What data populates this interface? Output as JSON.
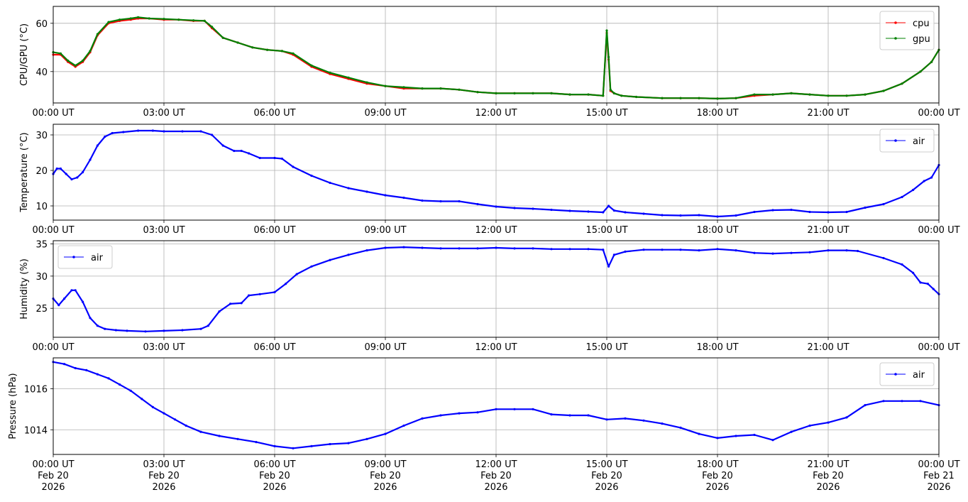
{
  "chart_data": [
    {
      "type": "line",
      "xlabel": "",
      "ylabel": "CPU/GPU (°C)",
      "xlim": [
        0,
        24
      ],
      "ylim": [
        27,
        67
      ],
      "yticks": [
        40,
        60
      ],
      "xtick_labels": [
        "00:00 UT",
        "03:00 UT",
        "06:00 UT",
        "09:00 UT",
        "12:00 UT",
        "15:00 UT",
        "18:00 UT",
        "21:00 UT",
        "00:00 UT"
      ],
      "grid": true,
      "legend": "top-right",
      "series": [
        {
          "name": "cpu",
          "color": "#ff0000",
          "x": [
            0,
            0.2,
            0.4,
            0.6,
            0.8,
            1,
            1.2,
            1.5,
            1.8,
            2.1,
            2.3,
            2.6,
            3,
            3.4,
            3.8,
            4.1,
            4.3,
            4.6,
            5,
            5.4,
            5.8,
            6.2,
            6.5,
            7,
            7.5,
            8,
            8.5,
            9,
            9.5,
            10,
            10.5,
            11,
            11.5,
            12,
            12.5,
            13,
            13.5,
            14,
            14.5,
            14.9,
            15,
            15.05,
            15.1,
            15.2,
            15.4,
            15.8,
            16.5,
            17,
            17.5,
            18,
            18.5,
            19,
            19.5,
            20,
            20.5,
            21,
            21.5,
            22,
            22.5,
            23,
            23.5,
            23.8,
            24
          ],
          "y": [
            47,
            47,
            44,
            42,
            44,
            48,
            55,
            60,
            61,
            61.5,
            62,
            62,
            61.5,
            61.5,
            61,
            61,
            58,
            54,
            52,
            50,
            49,
            48.5,
            47,
            42,
            39,
            37,
            35,
            34,
            33,
            33,
            33,
            32.5,
            31.5,
            31,
            31,
            31,
            31,
            30.5,
            30.5,
            30,
            56,
            45,
            32,
            31,
            30,
            29.5,
            29,
            29,
            29,
            28.8,
            29,
            30,
            30.5,
            31,
            30.5,
            30,
            30,
            30.5,
            32,
            35,
            40,
            44,
            49
          ]
        },
        {
          "name": "gpu",
          "color": "#008000",
          "x": [
            0,
            0.2,
            0.4,
            0.6,
            0.8,
            1,
            1.2,
            1.5,
            1.8,
            2.1,
            2.3,
            2.6,
            3,
            3.4,
            3.8,
            4.1,
            4.3,
            4.6,
            5,
            5.4,
            5.8,
            6.2,
            6.5,
            7,
            7.5,
            8,
            8.5,
            9,
            9.5,
            10,
            10.5,
            11,
            11.5,
            12,
            12.5,
            13,
            13.5,
            14,
            14.5,
            14.9,
            15,
            15.05,
            15.1,
            15.2,
            15.4,
            15.8,
            16.5,
            17,
            17.5,
            18,
            18.5,
            19,
            19.5,
            20,
            20.5,
            21,
            21.5,
            22,
            22.5,
            23,
            23.5,
            23.8,
            24
          ],
          "y": [
            48,
            47.5,
            44.5,
            42.5,
            44.5,
            48.5,
            55.5,
            60.5,
            61.5,
            62,
            62.5,
            62,
            61.8,
            61.5,
            61.2,
            61,
            58.5,
            54,
            52,
            50,
            49,
            48.5,
            47.5,
            42.5,
            39.5,
            37.5,
            35.5,
            34,
            33.5,
            33,
            33,
            32.5,
            31.5,
            31,
            31,
            31,
            31,
            30.5,
            30.5,
            30,
            57,
            46,
            32.5,
            31,
            30,
            29.5,
            29,
            29,
            29,
            28.8,
            29,
            30.5,
            30.5,
            31,
            30.5,
            30,
            30,
            30.5,
            32,
            35,
            40,
            44,
            49
          ]
        }
      ]
    },
    {
      "type": "line",
      "xlabel": "",
      "ylabel": "Temperature (°C)",
      "xlim": [
        0,
        24
      ],
      "ylim": [
        6,
        33
      ],
      "yticks": [
        10,
        20,
        30
      ],
      "xtick_labels": [
        "00:00 UT",
        "03:00 UT",
        "06:00 UT",
        "09:00 UT",
        "12:00 UT",
        "15:00 UT",
        "18:00 UT",
        "21:00 UT",
        "00:00 UT"
      ],
      "grid": true,
      "legend": "top-right",
      "series": [
        {
          "name": "air",
          "color": "#0000ff",
          "x": [
            0,
            0.1,
            0.2,
            0.35,
            0.5,
            0.65,
            0.8,
            1,
            1.2,
            1.4,
            1.6,
            1.9,
            2.3,
            2.7,
            3,
            3.5,
            4,
            4.3,
            4.6,
            4.9,
            5.1,
            5.3,
            5.6,
            6,
            6.2,
            6.5,
            7,
            7.5,
            8,
            8.5,
            9,
            9.5,
            10,
            10.5,
            11,
            11.5,
            12,
            12.5,
            13,
            13.5,
            14,
            14.5,
            14.9,
            15.05,
            15.2,
            15.5,
            16,
            16.5,
            17,
            17.5,
            18,
            18.5,
            19,
            19.5,
            20,
            20.5,
            21,
            21.5,
            22,
            22.5,
            23,
            23.3,
            23.6,
            23.8,
            24
          ],
          "y": [
            19,
            20.5,
            20.5,
            19,
            17.5,
            18,
            19.5,
            23,
            27,
            29.5,
            30.5,
            30.8,
            31.2,
            31.2,
            31,
            31,
            31,
            30,
            27,
            25.5,
            25.5,
            24.8,
            23.5,
            23.5,
            23.3,
            21,
            18.5,
            16.5,
            15,
            14,
            13,
            12.3,
            11.5,
            11.3,
            11.3,
            10.5,
            9.8,
            9.4,
            9.2,
            8.9,
            8.6,
            8.4,
            8.2,
            10,
            8.7,
            8.2,
            7.8,
            7.4,
            7.3,
            7.4,
            7,
            7.3,
            8.3,
            8.8,
            8.9,
            8.3,
            8.2,
            8.3,
            9.5,
            10.5,
            12.5,
            14.5,
            17,
            18,
            21.5
          ]
        }
      ]
    },
    {
      "type": "line",
      "xlabel": "",
      "ylabel": "Humidity (%)",
      "xlim": [
        0,
        24
      ],
      "ylim": [
        20.5,
        35.5
      ],
      "yticks": [
        25,
        30,
        35
      ],
      "xtick_labels": [
        "00:00 UT",
        "03:00 UT",
        "06:00 UT",
        "09:00 UT",
        "12:00 UT",
        "15:00 UT",
        "18:00 UT",
        "21:00 UT",
        "00:00 UT"
      ],
      "grid": true,
      "legend": "top-left",
      "series": [
        {
          "name": "air",
          "color": "#0000ff",
          "x": [
            0,
            0.15,
            0.3,
            0.5,
            0.6,
            0.8,
            1,
            1.2,
            1.4,
            1.7,
            2,
            2.5,
            3,
            3.5,
            4,
            4.2,
            4.5,
            4.8,
            5.1,
            5.3,
            5.6,
            6,
            6.3,
            6.6,
            7,
            7.5,
            8,
            8.5,
            9,
            9.5,
            10,
            10.5,
            11,
            11.5,
            12,
            12.5,
            13,
            13.5,
            14,
            14.5,
            14.9,
            15.05,
            15.2,
            15.5,
            16,
            16.5,
            17,
            17.5,
            18,
            18.5,
            19,
            19.5,
            20,
            20.5,
            21,
            21.5,
            21.8,
            22.5,
            23,
            23.3,
            23.5,
            23.7,
            23.85,
            24
          ],
          "y": [
            26.5,
            25.5,
            26.5,
            27.8,
            27.8,
            26,
            23.5,
            22.3,
            21.8,
            21.6,
            21.5,
            21.4,
            21.5,
            21.6,
            21.8,
            22.3,
            24.5,
            25.7,
            25.8,
            27,
            27.2,
            27.5,
            28.8,
            30.3,
            31.5,
            32.5,
            33.3,
            34,
            34.4,
            34.5,
            34.4,
            34.3,
            34.3,
            34.3,
            34.4,
            34.3,
            34.3,
            34.2,
            34.2,
            34.2,
            34.1,
            31.5,
            33.3,
            33.8,
            34.1,
            34.1,
            34.1,
            34,
            34.2,
            34,
            33.6,
            33.5,
            33.6,
            33.7,
            34,
            34,
            33.9,
            32.8,
            31.8,
            30.5,
            29,
            28.8,
            28,
            27.2
          ]
        }
      ]
    },
    {
      "type": "line",
      "xlabel": "",
      "ylabel": "Pressure (hPa)",
      "xlim": [
        0,
        24
      ],
      "ylim": [
        1012.8,
        1017.5
      ],
      "yticks": [
        1014,
        1016
      ],
      "xtick_labels": [
        "00:00 UT\nFeb 20\n2026",
        "03:00 UT\nFeb 20\n2026",
        "06:00 UT\nFeb 20\n2026",
        "09:00 UT\nFeb 20\n2026",
        "12:00 UT\nFeb 20\n2026",
        "15:00 UT\nFeb 20\n2026",
        "18:00 UT\nFeb 20\n2026",
        "21:00 UT\nFeb 20\n2026",
        "00:00 UT\nFeb 21\n2026"
      ],
      "grid": true,
      "legend": "top-right",
      "series": [
        {
          "name": "air",
          "color": "#0000ff",
          "x": [
            0,
            0.3,
            0.6,
            0.9,
            1.2,
            1.5,
            1.8,
            2.1,
            2.4,
            2.7,
            3,
            3.3,
            3.6,
            4,
            4.5,
            5,
            5.5,
            6,
            6.5,
            7,
            7.5,
            8,
            8.5,
            9,
            9.5,
            10,
            10.5,
            11,
            11.5,
            12,
            12.5,
            13,
            13.5,
            14,
            14.5,
            15,
            15.5,
            16,
            16.5,
            17,
            17.5,
            18,
            18.5,
            19,
            19.5,
            20,
            20.5,
            21,
            21.5,
            22,
            22.5,
            23,
            23.5,
            24
          ],
          "y": [
            1017.3,
            1017.2,
            1017.0,
            1016.9,
            1016.7,
            1016.5,
            1016.2,
            1015.9,
            1015.5,
            1015.1,
            1014.8,
            1014.5,
            1014.2,
            1013.9,
            1013.7,
            1013.55,
            1013.4,
            1013.2,
            1013.1,
            1013.2,
            1013.3,
            1013.35,
            1013.55,
            1013.8,
            1014.2,
            1014.55,
            1014.7,
            1014.8,
            1014.85,
            1015.0,
            1015.0,
            1015.0,
            1014.75,
            1014.7,
            1014.7,
            1014.5,
            1014.55,
            1014.45,
            1014.3,
            1014.1,
            1013.8,
            1013.6,
            1013.7,
            1013.75,
            1013.5,
            1013.9,
            1014.2,
            1014.35,
            1014.6,
            1015.2,
            1015.4,
            1015.4,
            1015.4,
            1015.2
          ]
        }
      ]
    }
  ]
}
